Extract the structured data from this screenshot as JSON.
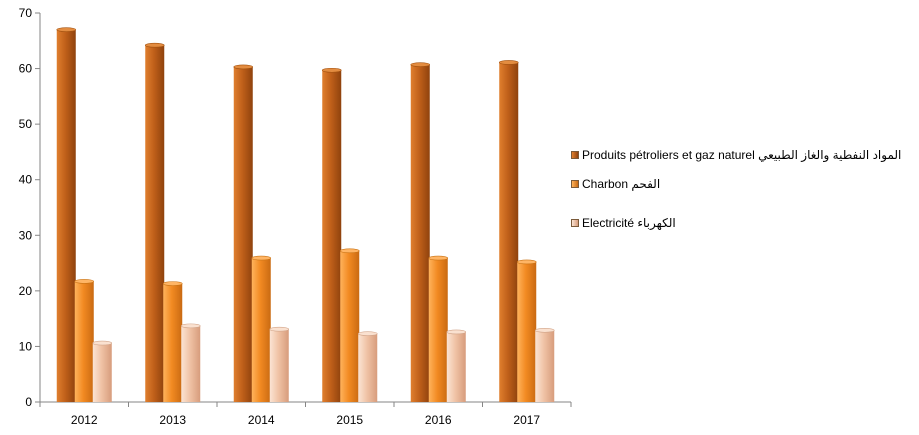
{
  "chart_data": {
    "type": "bar",
    "categories": [
      "2012",
      "2013",
      "2014",
      "2015",
      "2016",
      "2017"
    ],
    "series": [
      {
        "name": "Produits pétroliers et gaz  naturel  المواد النفطية والغاز الطبيعي",
        "values": [
          67.0,
          64.2,
          60.3,
          59.7,
          60.7,
          61.1
        ]
      },
      {
        "name": "Charbon الفحم",
        "values": [
          21.7,
          21.3,
          25.9,
          27.2,
          25.9,
          25.2
        ]
      },
      {
        "name": "Electricité الكهرباء",
        "values": [
          10.6,
          13.7,
          13.1,
          12.3,
          12.6,
          12.9
        ]
      }
    ],
    "ylim": [
      0,
      70
    ],
    "yticks": [
      0,
      10,
      20,
      30,
      40,
      50,
      60,
      70
    ],
    "grid": false,
    "legend_position": "right",
    "colors": [
      "#c8661f",
      "#f7962e",
      "#f1c9b0"
    ]
  }
}
